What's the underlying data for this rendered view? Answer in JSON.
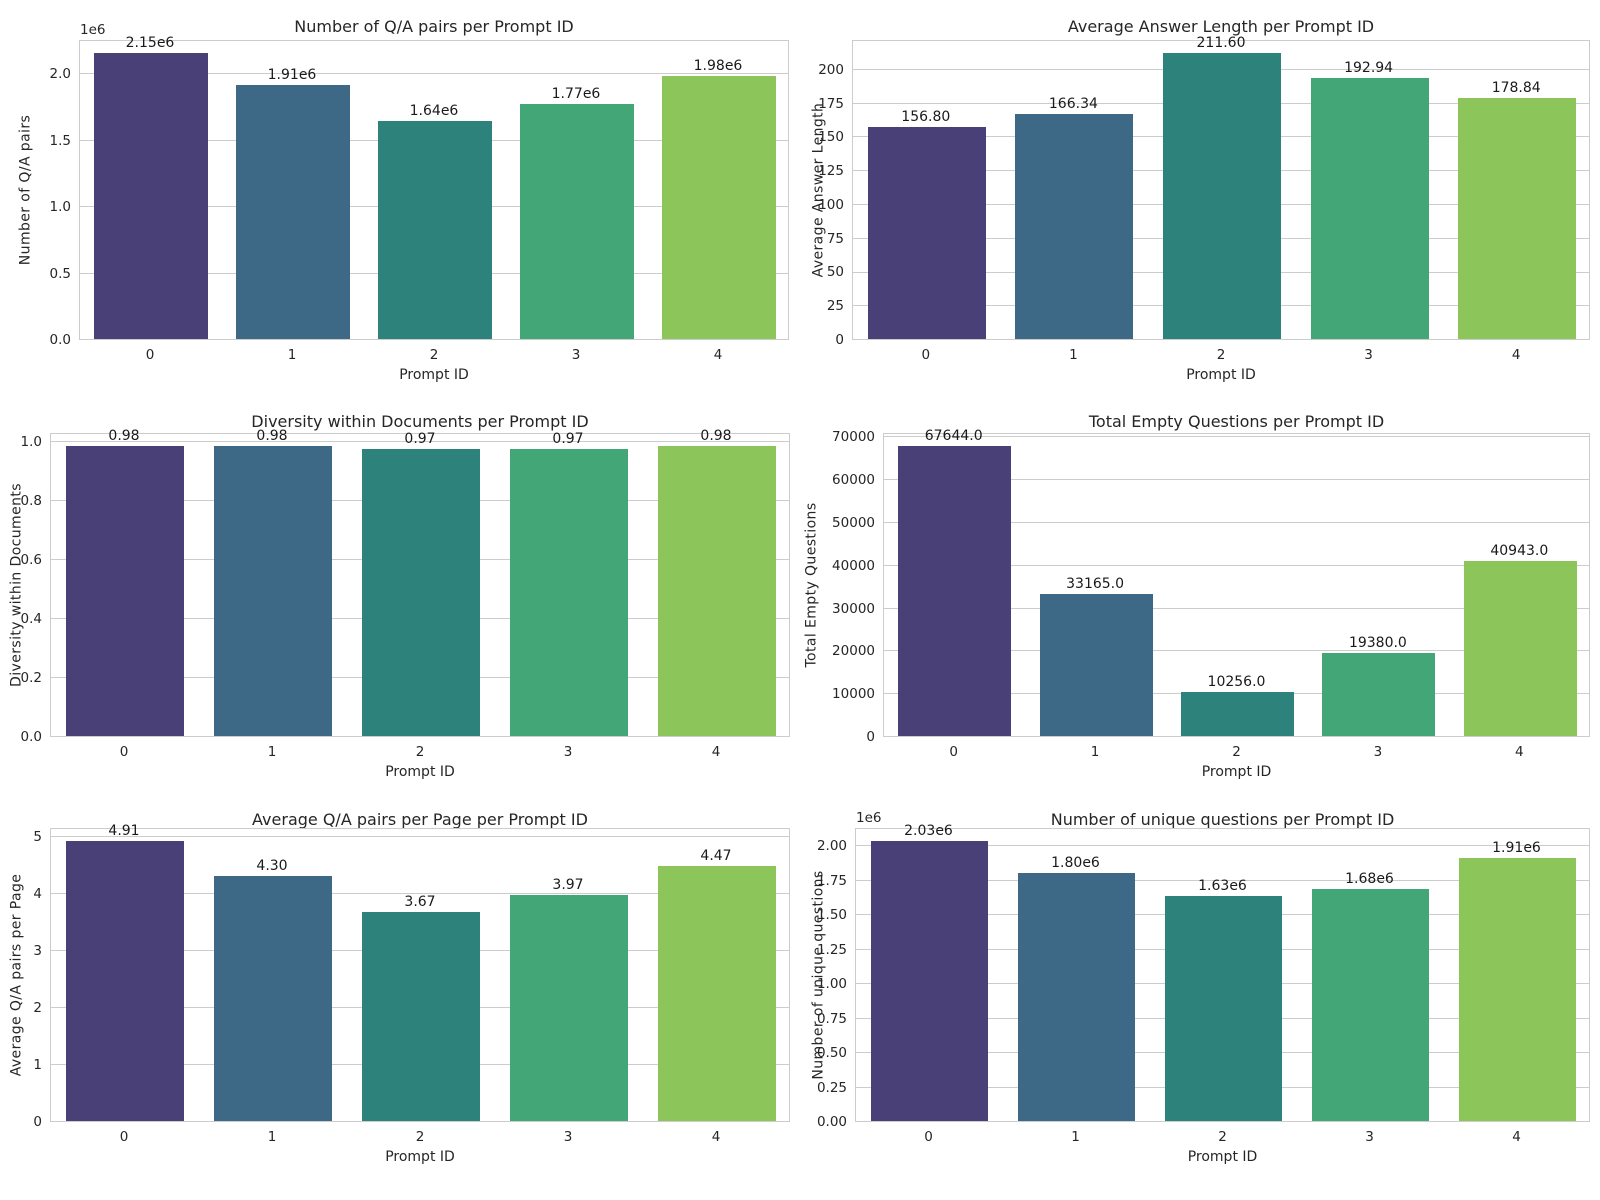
{
  "figure": {
    "background": "#ffffff",
    "style": {
      "grid_color": "#cccccc",
      "spine_color": "#cccccc",
      "text_color": "#262626",
      "bar_label_color": "#1a1a1a"
    },
    "palette": [
      "#4a4078",
      "#3d6886",
      "#2e827c",
      "#42a677",
      "#8cc65a"
    ]
  },
  "chart_data": [
    {
      "type": "bar",
      "title": "Number of Q/A pairs per Prompt ID",
      "xlabel": "Prompt ID",
      "ylabel": "Number of Q/A pairs",
      "categories": [
        "0",
        "1",
        "2",
        "3",
        "4"
      ],
      "values": [
        2150000,
        1910000,
        1640000,
        1770000,
        1980000
      ],
      "bar_labels": [
        "2.15e6",
        "1.91e6",
        "1.64e6",
        "1.77e6",
        "1.98e6"
      ],
      "ytick_values": [
        0,
        500000,
        1000000,
        1500000,
        2000000
      ],
      "ytick_labels": [
        "0.0",
        "0.5",
        "1.0",
        "1.5",
        "2.0"
      ],
      "offset_text": "1e6",
      "ylim": [
        0,
        2257500
      ],
      "grid": "horizontal",
      "legend": "none"
    },
    {
      "type": "bar",
      "title": "Average Answer Length per Prompt ID",
      "xlabel": "Prompt ID",
      "ylabel": "Average Answer Length",
      "categories": [
        "0",
        "1",
        "2",
        "3",
        "4"
      ],
      "values": [
        156.8,
        166.34,
        211.6,
        192.94,
        178.84
      ],
      "bar_labels": [
        "156.80",
        "166.34",
        "211.60",
        "192.94",
        "178.84"
      ],
      "ytick_values": [
        0,
        25,
        50,
        75,
        100,
        125,
        150,
        175,
        200
      ],
      "ytick_labels": [
        "0",
        "25",
        "50",
        "75",
        "100",
        "125",
        "150",
        "175",
        "200"
      ],
      "offset_text": "",
      "ylim": [
        0,
        222.18
      ],
      "grid": "horizontal",
      "legend": "none"
    },
    {
      "type": "bar",
      "title": "Diversity within Documents per Prompt ID",
      "xlabel": "Prompt ID",
      "ylabel": "Diversity within Documents",
      "categories": [
        "0",
        "1",
        "2",
        "3",
        "4"
      ],
      "values": [
        0.98,
        0.98,
        0.97,
        0.97,
        0.98
      ],
      "bar_labels": [
        "0.98",
        "0.98",
        "0.97",
        "0.97",
        "0.98"
      ],
      "ytick_values": [
        0,
        0.2,
        0.4,
        0.6,
        0.8,
        1.0
      ],
      "ytick_labels": [
        "0.0",
        "0.2",
        "0.4",
        "0.6",
        "0.8",
        "1.0"
      ],
      "offset_text": "",
      "ylim": [
        0,
        1.029
      ],
      "grid": "horizontal",
      "legend": "none"
    },
    {
      "type": "bar",
      "title": "Total Empty Questions per Prompt ID",
      "xlabel": "Prompt ID",
      "ylabel": "Total Empty Questions",
      "categories": [
        "0",
        "1",
        "2",
        "3",
        "4"
      ],
      "values": [
        67644,
        33165,
        10256,
        19380,
        40943
      ],
      "bar_labels": [
        "67644.0",
        "33165.0",
        "10256.0",
        "19380.0",
        "40943.0"
      ],
      "ytick_values": [
        0,
        10000,
        20000,
        30000,
        40000,
        50000,
        60000,
        70000
      ],
      "ytick_labels": [
        "0",
        "10000",
        "20000",
        "30000",
        "40000",
        "50000",
        "60000",
        "70000"
      ],
      "offset_text": "",
      "ylim": [
        0,
        71026
      ],
      "grid": "horizontal",
      "legend": "none"
    },
    {
      "type": "bar",
      "title": "Average Q/A pairs per Page per Prompt ID",
      "xlabel": "Prompt ID",
      "ylabel": "Average Q/A pairs per Page",
      "categories": [
        "0",
        "1",
        "2",
        "3",
        "4"
      ],
      "values": [
        4.91,
        4.3,
        3.67,
        3.97,
        4.47
      ],
      "bar_labels": [
        "4.91",
        "4.30",
        "3.67",
        "3.97",
        "4.47"
      ],
      "ytick_values": [
        0,
        1,
        2,
        3,
        4,
        5
      ],
      "ytick_labels": [
        "0",
        "1",
        "2",
        "3",
        "4",
        "5"
      ],
      "offset_text": "",
      "ylim": [
        0,
        5.156
      ],
      "grid": "horizontal",
      "legend": "none"
    },
    {
      "type": "bar",
      "title": "Number of unique questions per Prompt ID",
      "xlabel": "Prompt ID",
      "ylabel": "Number of unique questions",
      "categories": [
        "0",
        "1",
        "2",
        "3",
        "4"
      ],
      "values": [
        2030000,
        1800000,
        1630000,
        1680000,
        1910000
      ],
      "bar_labels": [
        "2.03e6",
        "1.80e6",
        "1.63e6",
        "1.68e6",
        "1.91e6"
      ],
      "ytick_values": [
        0,
        250000,
        500000,
        750000,
        1000000,
        1250000,
        1500000,
        1750000,
        2000000
      ],
      "ytick_labels": [
        "0.00",
        "0.25",
        "0.50",
        "0.75",
        "1.00",
        "1.25",
        "1.50",
        "1.75",
        "2.00"
      ],
      "offset_text": "1e6",
      "ylim": [
        0,
        2131500
      ],
      "grid": "horizontal",
      "legend": "none"
    }
  ]
}
